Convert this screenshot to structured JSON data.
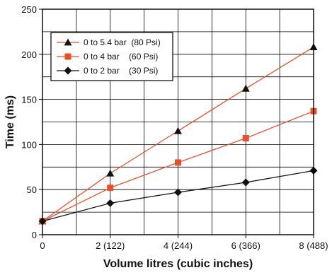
{
  "chart_data": {
    "type": "line",
    "title": "",
    "xlabel": "Volume litres (cubic inches)",
    "ylabel": "Time (ms)",
    "xlim": [
      0,
      8
    ],
    "ylim": [
      0,
      250
    ],
    "x_ticks": [
      {
        "value": 0,
        "label": "0"
      },
      {
        "value": 2,
        "label": "2 (122)"
      },
      {
        "value": 4,
        "label": "4 (244)"
      },
      {
        "value": 6,
        "label": "6 (366)"
      },
      {
        "value": 8,
        "label": "8 (488)"
      }
    ],
    "y_ticks": [
      {
        "value": 0,
        "label": "0"
      },
      {
        "value": 50,
        "label": "50"
      },
      {
        "value": 100,
        "label": "100"
      },
      {
        "value": 150,
        "label": "150"
      },
      {
        "value": 200,
        "label": "200"
      },
      {
        "value": 250,
        "label": "250"
      }
    ],
    "grid": true,
    "legend_position": "top-left",
    "series": [
      {
        "name": "0 to 5.4 bar  (80 Psi)",
        "marker": "triangle",
        "line_color": "#e8502a",
        "marker_color": "#111111",
        "x": [
          0,
          2,
          4,
          6,
          8
        ],
        "y": [
          15,
          68,
          115,
          162,
          208
        ]
      },
      {
        "name": "0 to 4 bar    (60 Psi)",
        "marker": "square",
        "line_color": "#e8502a",
        "marker_color": "#e8502a",
        "x": [
          0,
          2,
          4,
          6,
          8
        ],
        "y": [
          15,
          52,
          80,
          107,
          137
        ]
      },
      {
        "name": "0 to 2 bar    (30 Psi)",
        "marker": "diamond",
        "line_color": "#111111",
        "marker_color": "#111111",
        "x": [
          0,
          2,
          4,
          6,
          8
        ],
        "y": [
          15,
          35,
          47,
          58,
          71
        ]
      }
    ]
  }
}
